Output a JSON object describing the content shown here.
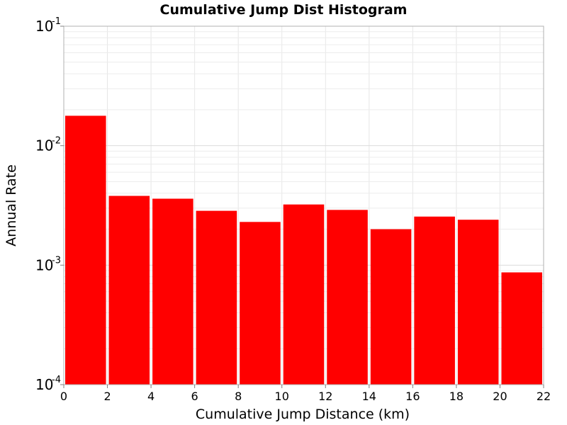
{
  "chart_data": {
    "type": "bar",
    "title": "Cumulative Jump Dist Histogram",
    "xlabel": "Cumulative Jump Distance (km)",
    "ylabel": "Annual Rate",
    "xlim": [
      0,
      22
    ],
    "ylim": [
      0.0001,
      0.1
    ],
    "yscale": "log",
    "grid": true,
    "xticks": [
      "0",
      "2",
      "4",
      "6",
      "8",
      "10",
      "12",
      "14",
      "16",
      "18",
      "20",
      "22"
    ],
    "yticks": [
      {
        "base": "10",
        "exp": "-4",
        "value": 0.0001
      },
      {
        "base": "10",
        "exp": "-3",
        "value": 0.001
      },
      {
        "base": "10",
        "exp": "-2",
        "value": 0.01
      },
      {
        "base": "10",
        "exp": "-1",
        "value": 0.1
      }
    ],
    "bin_width": 2,
    "x": [
      1,
      3,
      5,
      7,
      9,
      11,
      13,
      15,
      17,
      19,
      21
    ],
    "values": [
      0.0178,
      0.0038,
      0.0036,
      0.00285,
      0.0023,
      0.00322,
      0.0029,
      0.002,
      0.00255,
      0.0024,
      0.00087
    ],
    "bar_color": "#ff0000"
  }
}
